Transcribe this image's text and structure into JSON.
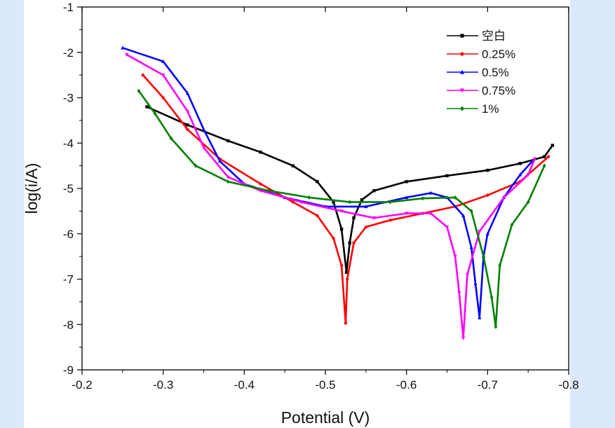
{
  "chart_data": {
    "type": "line",
    "title": "",
    "xlabel": "Potential (V)",
    "ylabel": "log(i/A)",
    "xlim": [
      -0.2,
      -0.8
    ],
    "ylim": [
      -9,
      -1
    ],
    "xticks": [
      -0.2,
      -0.3,
      -0.4,
      -0.5,
      -0.6,
      -0.7,
      -0.8
    ],
    "xtick_labels": [
      "-0.2",
      "-0.3",
      "-0.4",
      "-0.5",
      "-0.6",
      "-0.7",
      "-0.8"
    ],
    "yticks": [
      -9,
      -8,
      -7,
      -6,
      -5,
      -4,
      -3,
      -2,
      -1
    ],
    "ytick_labels": [
      "-9",
      "-8",
      "-7",
      "-6",
      "-5",
      "-4",
      "-3",
      "-2",
      "-1"
    ],
    "legend_position": "top-right",
    "series": [
      {
        "name": "空白",
        "color": "#000000",
        "marker": "square",
        "x": [
          -0.28,
          -0.33,
          -0.38,
          -0.42,
          -0.46,
          -0.49,
          -0.51,
          -0.52,
          -0.526,
          -0.53,
          -0.535,
          -0.545,
          -0.56,
          -0.6,
          -0.65,
          -0.7,
          -0.74,
          -0.77,
          -0.78
        ],
        "y": [
          -3.2,
          -3.6,
          -3.95,
          -4.2,
          -4.5,
          -4.85,
          -5.3,
          -5.9,
          -6.85,
          -6.2,
          -5.65,
          -5.25,
          -5.05,
          -4.85,
          -4.72,
          -4.6,
          -4.45,
          -4.3,
          -4.05
        ]
      },
      {
        "name": "0.25%",
        "color": "#ff0000",
        "marker": "circle",
        "x": [
          -0.275,
          -0.3,
          -0.33,
          -0.37,
          -0.42,
          -0.46,
          -0.49,
          -0.51,
          -0.52,
          -0.525,
          -0.527,
          -0.535,
          -0.55,
          -0.58,
          -0.62,
          -0.66,
          -0.7,
          -0.74,
          -0.775
        ],
        "y": [
          -2.5,
          -3.0,
          -3.7,
          -4.35,
          -4.9,
          -5.3,
          -5.6,
          -6.1,
          -6.7,
          -7.97,
          -7.0,
          -6.2,
          -5.85,
          -5.7,
          -5.55,
          -5.4,
          -5.15,
          -4.85,
          -4.3
        ]
      },
      {
        "name": "0.5%",
        "color": "#0000ff",
        "marker": "triangle-up",
        "x": [
          -0.25,
          -0.3,
          -0.33,
          -0.35,
          -0.37,
          -0.4,
          -0.45,
          -0.5,
          -0.55,
          -0.6,
          -0.63,
          -0.65,
          -0.67,
          -0.68,
          -0.685,
          -0.69,
          -0.695,
          -0.7,
          -0.72,
          -0.74,
          -0.755
        ],
        "y": [
          -1.9,
          -2.2,
          -2.9,
          -3.7,
          -4.4,
          -4.9,
          -5.2,
          -5.4,
          -5.4,
          -5.2,
          -5.1,
          -5.2,
          -5.6,
          -6.3,
          -7.1,
          -7.85,
          -6.5,
          -6.0,
          -5.2,
          -4.7,
          -4.4
        ]
      },
      {
        "name": "0.75%",
        "color": "#ff00ff",
        "marker": "triangle-down",
        "x": [
          -0.255,
          -0.3,
          -0.33,
          -0.35,
          -0.38,
          -0.42,
          -0.47,
          -0.52,
          -0.56,
          -0.6,
          -0.63,
          -0.65,
          -0.66,
          -0.665,
          -0.67,
          -0.675,
          -0.69,
          -0.72,
          -0.75,
          -0.758
        ],
        "y": [
          -2.05,
          -2.5,
          -3.3,
          -4.1,
          -4.75,
          -5.05,
          -5.3,
          -5.5,
          -5.65,
          -5.55,
          -5.55,
          -5.85,
          -6.5,
          -7.3,
          -8.3,
          -6.9,
          -5.95,
          -5.2,
          -4.7,
          -4.35
        ]
      },
      {
        "name": "1%",
        "color": "#008000",
        "marker": "diamond",
        "x": [
          -0.27,
          -0.29,
          -0.31,
          -0.34,
          -0.38,
          -0.43,
          -0.48,
          -0.53,
          -0.58,
          -0.62,
          -0.66,
          -0.68,
          -0.695,
          -0.705,
          -0.71,
          -0.715,
          -0.73,
          -0.75,
          -0.77
        ],
        "y": [
          -2.85,
          -3.35,
          -3.9,
          -4.5,
          -4.85,
          -5.05,
          -5.2,
          -5.3,
          -5.3,
          -5.22,
          -5.2,
          -5.5,
          -6.5,
          -7.4,
          -8.05,
          -6.7,
          -5.8,
          -5.3,
          -4.5
        ]
      }
    ]
  }
}
